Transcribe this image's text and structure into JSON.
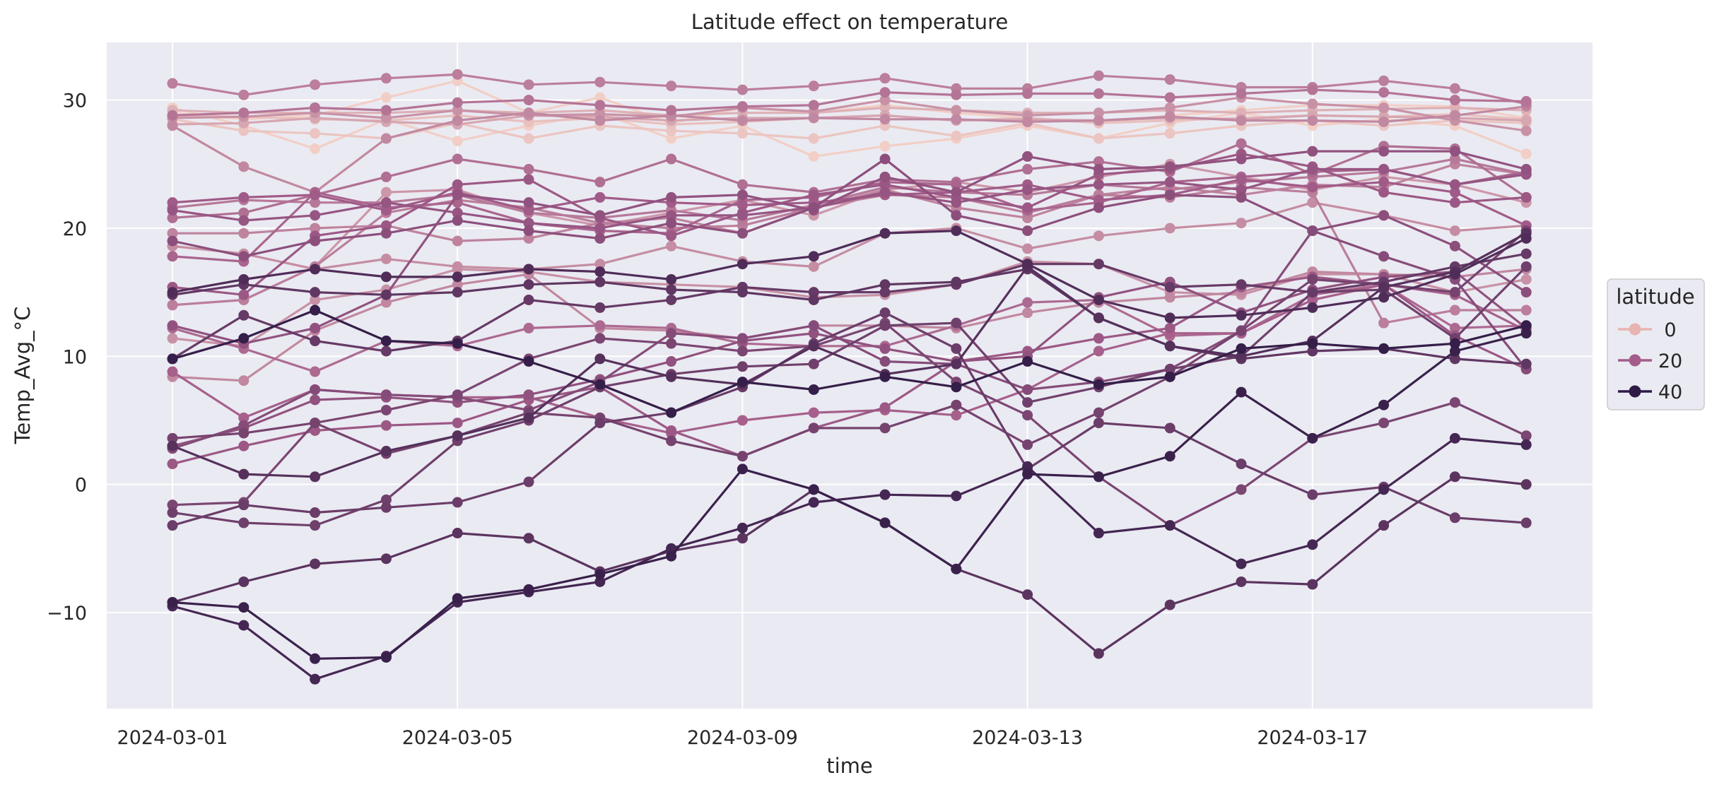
{
  "chart_data": {
    "type": "line",
    "title": "Latitude effect on temperature",
    "xlabel": "time",
    "ylabel": "Temp_Avg_°C",
    "x": [
      "2024-03-01",
      "2024-03-02",
      "2024-03-03",
      "2024-03-04",
      "2024-03-05",
      "2024-03-06",
      "2024-03-07",
      "2024-03-08",
      "2024-03-09",
      "2024-03-10",
      "2024-03-11",
      "2024-03-12",
      "2024-03-13",
      "2024-03-14",
      "2024-03-15",
      "2024-03-16",
      "2024-03-17",
      "2024-03-18",
      "2024-03-19",
      "2024-03-20"
    ],
    "x_ticks": [
      "2024-03-01",
      "2024-03-05",
      "2024-03-09",
      "2024-03-13",
      "2024-03-17"
    ],
    "y_ticks": [
      -10,
      0,
      10,
      20,
      30
    ],
    "ylim": [
      -17.5,
      34.5
    ],
    "grid": true,
    "background": "#eaeaf2",
    "legend": {
      "title": "latitude",
      "placement": "right",
      "entries": [
        {
          "label": "0",
          "color": "#e8b4b0"
        },
        {
          "label": "20",
          "color": "#a45d8a"
        },
        {
          "label": "40",
          "color": "#2e1a47"
        }
      ]
    },
    "color_scale": {
      "low": "#f2cfc6",
      "mid": "#a45d8a",
      "high": "#2a1843",
      "min": 0,
      "max": 45
    },
    "series": [
      {
        "latitude": 0,
        "values": [
          29.4,
          28.0,
          26.2,
          28.5,
          26.8,
          28.0,
          29.0,
          27.0,
          28.0,
          25.6,
          26.4,
          27.0,
          28.0,
          27.0,
          28.2,
          29.0,
          28.0,
          28.5,
          28.0,
          25.8
        ]
      },
      {
        "latitude": 0,
        "values": [
          29.0,
          28.5,
          28.8,
          30.2,
          31.5,
          29.0,
          30.2,
          28.2,
          29.4,
          29.0,
          29.6,
          29.0,
          28.6,
          28.2,
          28.8,
          29.2,
          29.6,
          29.6,
          29.5,
          28.6
        ]
      },
      {
        "latitude": 2,
        "values": [
          28.5,
          27.6,
          27.4,
          27.0,
          28.2,
          27.0,
          28.0,
          27.6,
          27.4,
          27.0,
          28.0,
          27.2,
          28.2,
          27.0,
          27.4,
          28.0,
          28.4,
          28.0,
          28.4,
          28.2
        ]
      },
      {
        "latitude": 3,
        "values": [
          28.8,
          28.7,
          28.5,
          28.4,
          28.8,
          28.3,
          28.6,
          28.1,
          28.3,
          28.6,
          28.8,
          28.4,
          28.6,
          28.2,
          28.4,
          28.6,
          28.8,
          28.7,
          28.9,
          28.5
        ]
      },
      {
        "latitude": 6,
        "values": [
          29.2,
          29.0,
          29.0,
          29.0,
          29.2,
          29.0,
          29.2,
          28.8,
          29.0,
          29.0,
          29.4,
          29.2,
          29.0,
          29.0,
          29.2,
          29.0,
          29.2,
          29.3,
          29.4,
          29.2
        ]
      },
      {
        "latitude": 8,
        "values": [
          28.1,
          28.2,
          28.6,
          28.3,
          28.1,
          28.8,
          28.7,
          28.4,
          28.6,
          28.6,
          28.8,
          28.4,
          28.5,
          28.4,
          28.6,
          28.5,
          28.8,
          28.7,
          28.6,
          28.4
        ]
      },
      {
        "latitude": 12,
        "values": [
          28.6,
          28.7,
          29.0,
          28.6,
          29.2,
          28.8,
          28.9,
          28.7,
          29.4,
          29.1,
          30.0,
          29.2,
          28.8,
          29.0,
          29.4,
          30.2,
          29.7,
          29.4,
          28.4,
          27.6
        ]
      },
      {
        "latitude": 14,
        "values": [
          28.0,
          24.8,
          22.8,
          27.0,
          28.4,
          29.0,
          28.4,
          28.8,
          28.4,
          28.6,
          28.5,
          28.5,
          28.3,
          28.4,
          28.7,
          28.4,
          28.4,
          28.3,
          28.8,
          29.5
        ]
      },
      {
        "latitude": 16,
        "values": [
          31.3,
          30.4,
          31.2,
          31.7,
          32.0,
          31.2,
          31.4,
          31.1,
          30.8,
          31.1,
          31.7,
          30.9,
          30.9,
          31.9,
          31.6,
          31.0,
          31.0,
          31.5,
          30.9,
          29.7
        ]
      },
      {
        "latitude": 18,
        "values": [
          28.8,
          29.0,
          29.4,
          29.2,
          29.8,
          30.0,
          29.6,
          29.2,
          29.5,
          29.6,
          30.6,
          30.4,
          30.5,
          30.5,
          30.2,
          30.5,
          30.8,
          30.6,
          30.0,
          29.9
        ]
      },
      {
        "latitude": 11,
        "values": [
          14.0,
          14.4,
          17.0,
          22.8,
          23.0,
          21.2,
          20.2,
          21.2,
          22.2,
          21.0,
          23.0,
          23.6,
          22.8,
          24.0,
          25.0,
          24.0,
          23.0,
          24.0,
          23.4,
          22.0
        ]
      },
      {
        "latitude": 13,
        "values": [
          18.6,
          18.0,
          16.8,
          17.6,
          17.0,
          16.8,
          17.2,
          18.6,
          17.4,
          17.0,
          19.6,
          20.0,
          18.4,
          19.4,
          20.0,
          20.4,
          22.0,
          21.0,
          19.8,
          20.2
        ]
      },
      {
        "latitude": 15,
        "values": [
          19.6,
          19.6,
          20.0,
          20.2,
          19.0,
          19.2,
          20.4,
          20.8,
          19.6,
          21.6,
          23.0,
          21.6,
          20.8,
          22.6,
          23.2,
          22.6,
          23.4,
          23.2,
          25.0,
          24.2
        ]
      },
      {
        "latitude": 17,
        "values": [
          21.6,
          22.2,
          22.0,
          22.0,
          22.6,
          21.2,
          20.8,
          21.4,
          20.6,
          21.8,
          23.2,
          22.8,
          22.6,
          23.4,
          23.0,
          23.6,
          24.0,
          24.4,
          25.4,
          24.2
        ]
      },
      {
        "latitude": 19,
        "values": [
          20.8,
          21.2,
          22.6,
          24.0,
          25.4,
          24.6,
          23.6,
          25.4,
          23.4,
          22.8,
          23.8,
          23.6,
          24.6,
          25.2,
          24.4,
          26.6,
          24.2,
          26.4,
          26.2,
          22.4
        ]
      },
      {
        "latitude": 21,
        "values": [
          17.8,
          17.4,
          22.8,
          21.6,
          22.0,
          20.4,
          19.8,
          19.6,
          22.2,
          22.4,
          23.6,
          23.4,
          21.4,
          22.0,
          23.6,
          24.0,
          24.4,
          24.6,
          23.4,
          24.4
        ]
      },
      {
        "latitude": 23,
        "values": [
          22.0,
          22.4,
          22.6,
          21.4,
          22.8,
          21.4,
          22.4,
          22.0,
          21.8,
          22.0,
          22.6,
          22.8,
          23.4,
          22.2,
          22.6,
          23.8,
          23.2,
          23.6,
          22.8,
          20.2
        ]
      },
      {
        "latitude": 24,
        "values": [
          15.4,
          14.8,
          19.4,
          20.2,
          23.4,
          23.8,
          20.8,
          19.4,
          21.2,
          22.6,
          23.4,
          22.4,
          21.6,
          24.2,
          24.6,
          25.8,
          24.8,
          22.8,
          22.0,
          22.4
        ]
      },
      {
        "latitude": 25,
        "values": [
          21.4,
          20.6,
          21.0,
          22.0,
          21.2,
          20.4,
          20.0,
          21.0,
          21.0,
          21.6,
          22.8,
          22.0,
          23.0,
          23.4,
          23.6,
          23.0,
          24.6,
          24.6,
          23.4,
          24.2
        ]
      },
      {
        "latitude": 26,
        "values": [
          12.4,
          11.0,
          12.2,
          14.8,
          22.6,
          22.0,
          21.0,
          22.4,
          22.6,
          21.4,
          24.0,
          22.8,
          25.6,
          24.6,
          24.8,
          25.4,
          26.0,
          26.0,
          26.0,
          24.6
        ]
      },
      {
        "latitude": 27,
        "values": [
          19.0,
          17.8,
          19.0,
          19.6,
          20.6,
          19.8,
          19.2,
          20.4,
          19.6,
          21.6,
          25.4,
          21.0,
          19.8,
          21.6,
          22.6,
          22.4,
          19.8,
          21.0,
          18.6,
          15.0
        ]
      },
      {
        "latitude": 12,
        "values": [
          11.4,
          10.8,
          14.4,
          15.2,
          16.8,
          16.6,
          15.8,
          15.6,
          15.4,
          14.6,
          14.8,
          15.6,
          17.4,
          17.2,
          15.0,
          14.8,
          16.4,
          16.4,
          15.0,
          16.0
        ]
      },
      {
        "latitude": 14,
        "values": [
          8.4,
          8.1,
          12.0,
          14.2,
          15.6,
          16.4,
          12.2,
          12.0,
          11.4,
          12.4,
          12.4,
          12.2,
          13.4,
          14.2,
          14.6,
          15.0,
          16.6,
          16.4,
          16.2,
          16.8
        ]
      },
      {
        "latitude": 16,
        "values": [
          14.0,
          14.4,
          17.0,
          21.2,
          22.2,
          21.6,
          20.4,
          20.0,
          20.2,
          21.6,
          22.6,
          22.4,
          21.2,
          22.6,
          22.4,
          23.2,
          22.8,
          12.6,
          13.6,
          13.6
        ]
      },
      {
        "latitude": 20,
        "values": [
          12.2,
          10.6,
          8.8,
          11.2,
          10.8,
          12.2,
          12.4,
          12.2,
          11.0,
          10.8,
          10.8,
          12.4,
          14.2,
          14.4,
          11.6,
          11.8,
          14.8,
          15.6,
          12.2,
          12.4
        ]
      },
      {
        "latitude": 22,
        "values": [
          8.8,
          5.2,
          7.4,
          7.0,
          6.8,
          6.8,
          5.2,
          4.0,
          5.0,
          5.6,
          5.8,
          5.4,
          7.4,
          10.4,
          11.8,
          11.8,
          14.4,
          15.6,
          14.8,
          12.0
        ]
      },
      {
        "latitude": 24,
        "values": [
          1.6,
          3.0,
          4.2,
          4.6,
          4.8,
          6.6,
          7.6,
          4.2,
          2.2,
          4.4,
          6.0,
          9.6,
          10.4,
          11.4,
          12.2,
          15.4,
          16.2,
          15.6,
          11.6,
          9.0
        ]
      },
      {
        "latitude": 26,
        "values": [
          3.0,
          4.4,
          6.6,
          6.8,
          6.4,
          7.0,
          8.2,
          9.6,
          11.2,
          11.8,
          10.6,
          9.6,
          10.0,
          14.6,
          15.8,
          13.4,
          15.2,
          16.2,
          16.6,
          12.2
        ]
      },
      {
        "latitude": 28,
        "values": [
          2.8,
          4.6,
          7.4,
          7.0,
          6.8,
          5.8,
          8.0,
          11.8,
          11.4,
          12.4,
          9.6,
          9.4,
          7.4,
          8.0,
          9.0,
          12.0,
          19.8,
          17.8,
          16.0,
          9.0
        ]
      },
      {
        "latitude": 30,
        "values": [
          -1.6,
          -1.4,
          4.8,
          5.8,
          7.0,
          9.8,
          11.4,
          11.0,
          10.4,
          10.8,
          12.6,
          8.0,
          5.4,
          0.6,
          -3.2,
          -0.4,
          3.6,
          4.8,
          6.4,
          3.8
        ]
      },
      {
        "latitude": 31,
        "values": [
          3.6,
          4.0,
          4.8,
          2.4,
          3.8,
          5.6,
          5.2,
          3.4,
          2.2,
          4.4,
          4.4,
          6.2,
          3.1,
          5.6,
          8.4,
          12.0,
          16.0,
          15.6,
          15.0,
          19.8
        ]
      },
      {
        "latitude": 32,
        "values": [
          -2.2,
          -3.0,
          -3.2,
          -1.2,
          3.4,
          5.0,
          7.6,
          8.6,
          9.2,
          9.4,
          12.4,
          12.6,
          6.4,
          7.6,
          9.0,
          10.0,
          15.0,
          15.2,
          11.4,
          17.0
        ]
      },
      {
        "latitude": 33,
        "values": [
          -3.2,
          -1.6,
          -2.2,
          -1.8,
          -1.4,
          0.2,
          4.8,
          5.6,
          7.6,
          11.0,
          13.4,
          10.6,
          1.2,
          4.8,
          4.4,
          1.6,
          -0.8,
          -0.2,
          -2.6,
          -3.0
        ]
      },
      {
        "latitude": 34,
        "values": [
          9.8,
          13.2,
          11.2,
          10.4,
          11.2,
          14.4,
          13.8,
          14.4,
          15.4,
          15.0,
          15.0,
          15.6,
          17.2,
          17.2,
          15.4,
          15.6,
          15.0,
          15.8,
          17.0,
          18.0
        ]
      },
      {
        "latitude": 35,
        "values": [
          14.8,
          15.6,
          15.0,
          14.8,
          15.0,
          15.6,
          15.8,
          15.2,
          15.0,
          14.4,
          15.6,
          15.8,
          16.8,
          13.0,
          10.8,
          9.8,
          10.4,
          10.6,
          9.8,
          9.4
        ]
      },
      {
        "latitude": 36,
        "values": [
          -9.2,
          -7.6,
          -6.2,
          -5.8,
          -3.8,
          -4.2,
          -6.8,
          -5.2,
          -4.2,
          -0.4,
          -3.0,
          -6.6,
          -8.6,
          -13.2,
          -9.4,
          -7.6,
          -7.8,
          -3.2,
          0.6,
          0.0
        ]
      },
      {
        "latitude": 37,
        "values": [
          3.0,
          0.8,
          0.6,
          2.6,
          3.8,
          5.2,
          9.8,
          8.4,
          7.8,
          10.8,
          8.6,
          9.4,
          17.0,
          13.0,
          10.8,
          10.0,
          11.2,
          15.4,
          16.6,
          19.6
        ]
      },
      {
        "latitude": 38,
        "values": [
          15.0,
          16.0,
          16.8,
          16.2,
          16.2,
          16.8,
          16.6,
          16.0,
          17.2,
          17.8,
          19.6,
          19.8,
          17.2,
          14.4,
          13.0,
          13.2,
          13.8,
          14.6,
          16.4,
          19.2
        ]
      },
      {
        "latitude": 40,
        "values": [
          -9.5,
          -11.0,
          -15.2,
          -13.4,
          -9.2,
          -8.4,
          -7.6,
          -5.0,
          -3.4,
          -1.4,
          -0.8,
          -0.9,
          1.4,
          -3.8,
          -3.2,
          -6.2,
          -4.7,
          -0.4,
          3.6,
          3.1
        ]
      },
      {
        "latitude": 42,
        "values": [
          -9.2,
          -9.6,
          -13.6,
          -13.5,
          -8.9,
          -8.2,
          -7.0,
          -5.6,
          1.2,
          -0.4,
          -3.0,
          -6.6,
          0.8,
          0.6,
          2.2,
          7.2,
          3.6,
          6.2,
          10.4,
          11.8
        ]
      },
      {
        "latitude": 43,
        "values": [
          9.8,
          11.4,
          13.6,
          11.2,
          11.0,
          9.6,
          7.8,
          5.6,
          8.0,
          7.4,
          8.4,
          7.6,
          9.6,
          7.8,
          8.4,
          10.6,
          11.0,
          10.6,
          11.0,
          12.4
        ]
      }
    ]
  }
}
